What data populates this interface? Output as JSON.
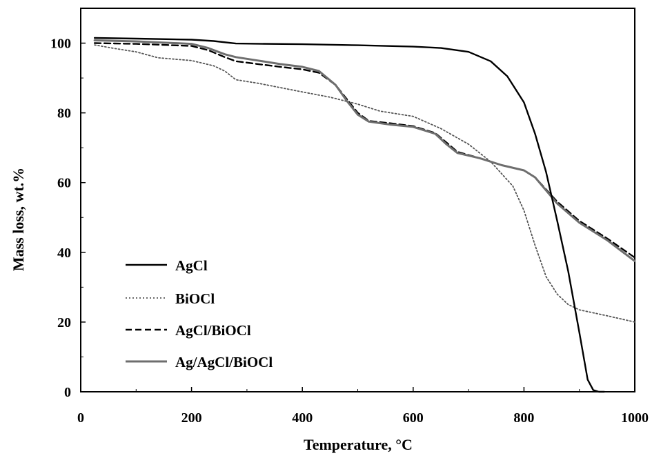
{
  "chart_data": {
    "type": "line",
    "xlabel": "Temperature, °C",
    "ylabel": "Mass loss, wt.%",
    "xlim": [
      0,
      1000
    ],
    "ylim": [
      0,
      110
    ],
    "xticks": [
      0,
      200,
      400,
      600,
      800,
      1000
    ],
    "yticks": [
      0,
      20,
      40,
      60,
      80,
      100
    ],
    "grid": false,
    "legend_position": "bottom-left",
    "series": [
      {
        "name": "AgCl",
        "color": "#000000",
        "style": "solid",
        "x": [
          25,
          100,
          200,
          240,
          280,
          400,
          500,
          600,
          650,
          700,
          740,
          770,
          800,
          820,
          840,
          860,
          880,
          900,
          915,
          925,
          935,
          945
        ],
        "y": [
          101.5,
          101.3,
          101.0,
          100.6,
          99.9,
          99.7,
          99.4,
          99.0,
          98.6,
          97.5,
          94.8,
          90.5,
          83.0,
          74.0,
          63.0,
          49.0,
          34.5,
          17.0,
          3.5,
          0.5,
          0.0,
          0.0
        ]
      },
      {
        "name": "BiOCl",
        "color": "#555555",
        "style": "dotted",
        "x": [
          25,
          60,
          100,
          140,
          200,
          240,
          260,
          280,
          320,
          400,
          450,
          500,
          540,
          600,
          650,
          700,
          740,
          780,
          800,
          820,
          840,
          860,
          880,
          900,
          950,
          1000
        ],
        "y": [
          99.5,
          98.5,
          97.5,
          95.8,
          95.0,
          93.5,
          92.0,
          89.5,
          88.5,
          86.0,
          84.5,
          82.5,
          80.5,
          79.0,
          75.5,
          71.0,
          66.0,
          59.0,
          52.0,
          42.0,
          33.0,
          28.0,
          25.0,
          23.5,
          21.8,
          20.0
        ]
      },
      {
        "name": "AgCl/BiOCl",
        "color": "#000000",
        "style": "dashed",
        "x": [
          25,
          100,
          200,
          230,
          260,
          280,
          320,
          360,
          400,
          430,
          460,
          480,
          500,
          520,
          560,
          600,
          640,
          660,
          680,
          720,
          760,
          800,
          820,
          860,
          900,
          950,
          1000
        ],
        "y": [
          100.0,
          99.8,
          99.2,
          98.0,
          96.0,
          94.8,
          94.0,
          93.2,
          92.5,
          91.5,
          88.0,
          84.0,
          80.0,
          77.7,
          77.0,
          76.2,
          74.2,
          71.5,
          68.8,
          67.0,
          65.0,
          63.5,
          61.5,
          54.5,
          49.0,
          44.0,
          38.5
        ]
      },
      {
        "name": "Ag/AgCl/BiOCl",
        "color": "#6e6e6e",
        "style": "solid",
        "x": [
          25,
          100,
          200,
          230,
          260,
          280,
          320,
          360,
          400,
          430,
          460,
          480,
          500,
          520,
          560,
          600,
          640,
          660,
          680,
          720,
          760,
          800,
          820,
          860,
          900,
          950,
          1000
        ],
        "y": [
          100.8,
          100.5,
          99.8,
          98.6,
          96.8,
          96.0,
          95.0,
          94.0,
          93.2,
          92.0,
          88.0,
          83.5,
          79.5,
          77.5,
          76.6,
          76.0,
          74.0,
          71.0,
          68.5,
          67.0,
          65.0,
          63.5,
          61.5,
          54.0,
          48.5,
          43.5,
          37.5
        ]
      }
    ]
  }
}
